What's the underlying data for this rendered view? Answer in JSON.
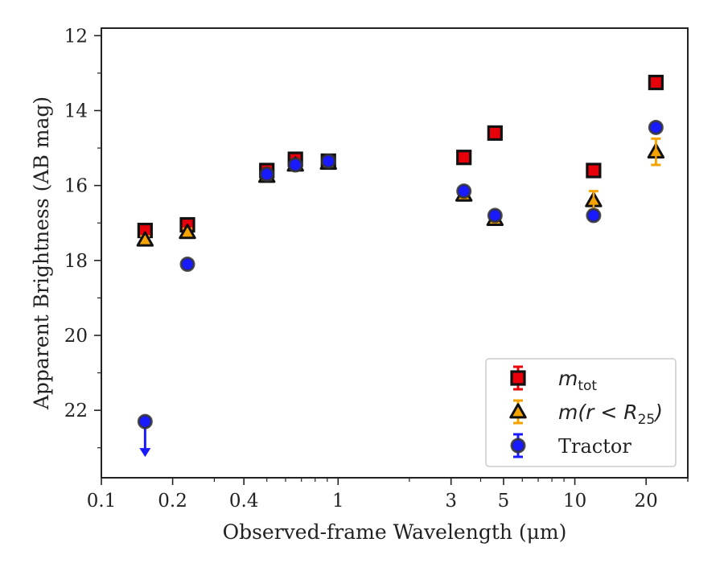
{
  "chart_data": {
    "type": "scatter",
    "xscale": "log",
    "xlim": [
      0.1,
      30
    ],
    "ylim": [
      23.8,
      11.8
    ],
    "y_inverted": true,
    "xlabel": "Observed-frame Wavelength (μm)",
    "ylabel": "Apparent Brightness (AB mag)",
    "x_ticks": [
      0.1,
      0.2,
      0.4,
      1,
      3,
      5,
      10,
      20
    ],
    "x_tick_labels": [
      "0.1",
      "0.2",
      "0.4",
      "1",
      "3",
      "5",
      "10",
      "20"
    ],
    "y_ticks": [
      12,
      14,
      16,
      18,
      20,
      22
    ],
    "y_tick_labels": [
      "12",
      "14",
      "16",
      "18",
      "20",
      "22"
    ],
    "legend_position": "lower-right",
    "series": [
      {
        "name": "m_tot",
        "legend_label": "m",
        "legend_sub": "tot",
        "marker": "square",
        "face_color": "#e8000b",
        "edge_color": "#111111",
        "error_color": "#e8000b",
        "points": [
          {
            "x": 0.153,
            "y": 17.2,
            "err": 0.12
          },
          {
            "x": 0.231,
            "y": 17.05,
            "err": 0.1
          },
          {
            "x": 0.5,
            "y": 15.6,
            "err": 0.08
          },
          {
            "x": 0.66,
            "y": 15.3,
            "err": 0.08
          },
          {
            "x": 0.91,
            "y": 15.35,
            "err": 0.08
          },
          {
            "x": 3.4,
            "y": 15.25,
            "err": 0.08
          },
          {
            "x": 4.6,
            "y": 14.6,
            "err": 0.08
          },
          {
            "x": 12.0,
            "y": 15.6,
            "err": 0.08
          },
          {
            "x": 22.0,
            "y": 13.25,
            "err": 0.08
          }
        ]
      },
      {
        "name": "m(r<R25)",
        "legend_label": "m(r < R",
        "legend_sub": "25",
        "legend_tail": ")",
        "marker": "triangle",
        "face_color": "#f5a300",
        "edge_color": "#111111",
        "error_color": "#f5a300",
        "points": [
          {
            "x": 0.153,
            "y": 17.45,
            "err": 0.1
          },
          {
            "x": 0.231,
            "y": 17.25,
            "err": 0.1
          },
          {
            "x": 0.5,
            "y": 15.75,
            "err": 0.08
          },
          {
            "x": 0.66,
            "y": 15.45,
            "err": 0.08
          },
          {
            "x": 0.91,
            "y": 15.4,
            "err": 0.08
          },
          {
            "x": 3.4,
            "y": 16.25,
            "err": 0.08
          },
          {
            "x": 4.6,
            "y": 16.9,
            "err": 0.08
          },
          {
            "x": 12.0,
            "y": 16.4,
            "err": 0.25
          },
          {
            "x": 22.0,
            "y": 15.1,
            "err": 0.35
          }
        ]
      },
      {
        "name": "Tractor",
        "legend_label": "Tractor",
        "marker": "circle",
        "face_color": "#1a1aff",
        "edge_color": "#333333",
        "error_color": "#1a1aff",
        "points": [
          {
            "x": 0.153,
            "y": 22.3,
            "err": 0,
            "upper_limit": true
          },
          {
            "x": 0.231,
            "y": 18.1,
            "err": 0.06
          },
          {
            "x": 0.5,
            "y": 15.7,
            "err": 0.06
          },
          {
            "x": 0.66,
            "y": 15.45,
            "err": 0.06
          },
          {
            "x": 0.91,
            "y": 15.35,
            "err": 0.06
          },
          {
            "x": 3.4,
            "y": 16.15,
            "err": 0.06
          },
          {
            "x": 4.6,
            "y": 16.8,
            "err": 0.06
          },
          {
            "x": 12.0,
            "y": 16.8,
            "err": 0.06
          },
          {
            "x": 22.0,
            "y": 14.45,
            "err": 0.06
          }
        ]
      }
    ]
  }
}
